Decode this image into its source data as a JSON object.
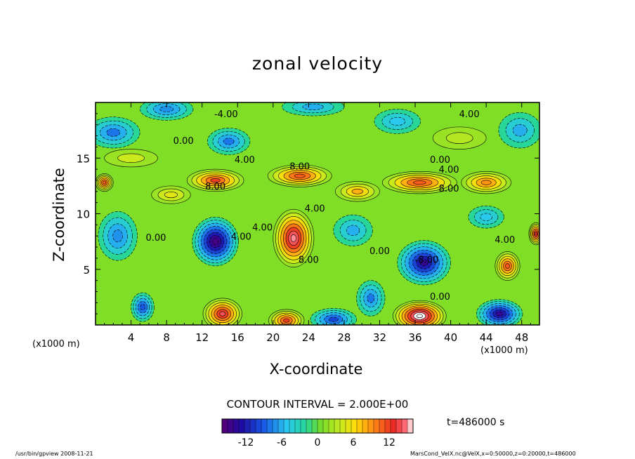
{
  "chart_data": {
    "type": "heatmap",
    "title": "zonal velocity",
    "xlabel": "X-coordinate",
    "ylabel": "Z-coordinate",
    "x_unit_left": "(x1000 m)",
    "x_unit_right": "(x1000 m)",
    "xlim": [
      0,
      50
    ],
    "ylim": [
      0,
      20
    ],
    "x_ticks": [
      4,
      8,
      12,
      16,
      20,
      24,
      28,
      32,
      36,
      40,
      44,
      48
    ],
    "y_ticks": [
      5,
      10,
      15
    ],
    "contour_interval_label": "CONTOUR INTERVAL = 2.000E+00",
    "time_label": "t=486000 s",
    "colorbar": {
      "min": -16,
      "max": 16,
      "ticks": [
        -12,
        -6,
        0,
        6,
        12
      ]
    },
    "contour_labels": [
      {
        "text": "-4.00",
        "x": 14.7,
        "z": 18.9
      },
      {
        "text": "4.00",
        "x": 42.1,
        "z": 18.9
      },
      {
        "text": "0.00",
        "x": 9.9,
        "z": 16.5
      },
      {
        "text": "4.00",
        "x": 16.8,
        "z": 14.8
      },
      {
        "text": "0.00",
        "x": 38.8,
        "z": 14.8
      },
      {
        "text": "8.00",
        "x": 23.0,
        "z": 14.2
      },
      {
        "text": "4.00",
        "x": 39.8,
        "z": 13.9
      },
      {
        "text": "8.00",
        "x": 13.5,
        "z": 12.4
      },
      {
        "text": "8.00",
        "x": 39.8,
        "z": 12.2
      },
      {
        "text": "4.00",
        "x": 24.7,
        "z": 10.4
      },
      {
        "text": "0.00",
        "x": 6.8,
        "z": 7.8
      },
      {
        "text": "4.00",
        "x": 16.4,
        "z": 7.9
      },
      {
        "text": "4.00",
        "x": 18.8,
        "z": 8.7
      },
      {
        "text": "0.00",
        "x": 32.0,
        "z": 6.6
      },
      {
        "text": "8.00",
        "x": 24.0,
        "z": 5.8
      },
      {
        "text": "-8.00",
        "x": 37.3,
        "z": 5.8
      },
      {
        "text": "4.00",
        "x": 46.1,
        "z": 7.6
      },
      {
        "text": "0.00",
        "x": 38.8,
        "z": 2.5
      }
    ],
    "features": [
      {
        "x": 13.5,
        "z": 7.5,
        "value": -15,
        "sx": 2.6,
        "sz": 2.2
      },
      {
        "x": 22.3,
        "z": 7.8,
        "value": 15,
        "sx": 2.3,
        "sz": 2.6
      },
      {
        "x": 37.0,
        "z": 5.6,
        "value": -14,
        "sx": 3.0,
        "sz": 2.0
      },
      {
        "x": 36.5,
        "z": 0.8,
        "value": 17,
        "sx": 3.0,
        "sz": 1.4
      },
      {
        "x": 14.3,
        "z": 1.0,
        "value": 14,
        "sx": 2.2,
        "sz": 1.4
      },
      {
        "x": 21.5,
        "z": 0.4,
        "value": 12,
        "sx": 2.0,
        "sz": 1.0
      },
      {
        "x": 45.5,
        "z": 1.0,
        "value": -14,
        "sx": 2.6,
        "sz": 1.3
      },
      {
        "x": 26.8,
        "z": 0.5,
        "value": -10,
        "sx": 2.6,
        "sz": 1.0
      },
      {
        "x": 5.3,
        "z": 1.6,
        "value": -9,
        "sx": 1.3,
        "sz": 1.3
      },
      {
        "x": 31.0,
        "z": 2.4,
        "value": -8,
        "sx": 1.6,
        "sz": 1.6
      },
      {
        "x": 46.4,
        "z": 5.3,
        "value": 11,
        "sx": 1.4,
        "sz": 1.3
      },
      {
        "x": 49.6,
        "z": 8.2,
        "value": 13,
        "sx": 0.8,
        "sz": 1.0
      },
      {
        "x": 44.0,
        "z": 9.7,
        "value": -5,
        "sx": 2.0,
        "sz": 1.0
      },
      {
        "x": 2.5,
        "z": 8.0,
        "value": -7,
        "sx": 2.2,
        "sz": 2.2
      },
      {
        "x": 8.5,
        "z": 11.7,
        "value": 5,
        "sx": 2.2,
        "sz": 0.8
      },
      {
        "x": 29.0,
        "z": 8.5,
        "value": -6,
        "sx": 2.2,
        "sz": 1.4
      },
      {
        "x": 13.5,
        "z": 13.0,
        "value": 12,
        "sx": 3.2,
        "sz": 1.0
      },
      {
        "x": 23.0,
        "z": 13.4,
        "value": 11,
        "sx": 3.6,
        "sz": 1.0
      },
      {
        "x": 36.5,
        "z": 12.8,
        "value": 11,
        "sx": 4.2,
        "sz": 1.0
      },
      {
        "x": 44.0,
        "z": 12.8,
        "value": 9,
        "sx": 2.8,
        "sz": 1.0
      },
      {
        "x": 1.0,
        "z": 12.8,
        "value": 11,
        "sx": 1.0,
        "sz": 0.8
      },
      {
        "x": 29.5,
        "z": 12.0,
        "value": 8,
        "sx": 2.5,
        "sz": 0.9
      },
      {
        "x": 2.0,
        "z": 17.3,
        "value": -8,
        "sx": 3.0,
        "sz": 1.4
      },
      {
        "x": 8.0,
        "z": 19.4,
        "value": -7,
        "sx": 3.0,
        "sz": 1.0
      },
      {
        "x": 15.0,
        "z": 16.5,
        "value": -8,
        "sx": 2.4,
        "sz": 1.2
      },
      {
        "x": 24.5,
        "z": 19.6,
        "value": -6,
        "sx": 3.5,
        "sz": 0.8
      },
      {
        "x": 34.0,
        "z": 18.3,
        "value": -5,
        "sx": 2.6,
        "sz": 1.1
      },
      {
        "x": 47.8,
        "z": 17.5,
        "value": -6,
        "sx": 2.4,
        "sz": 1.6
      },
      {
        "x": 4.0,
        "z": 15.0,
        "value": 4,
        "sx": 3.0,
        "sz": 0.8
      },
      {
        "x": 41.0,
        "z": 16.8,
        "value": 3,
        "sx": 3.0,
        "sz": 1.0
      }
    ]
  },
  "footer": {
    "left": "/usr/bin/gpview   2008-11-21",
    "right": "MarsCond_VelX.nc@VelX,x=0:50000,z=0:20000,t=486000"
  }
}
